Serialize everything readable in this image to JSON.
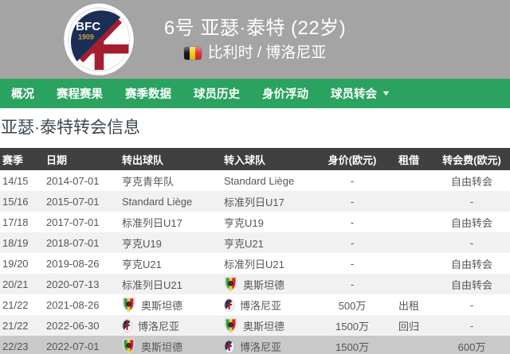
{
  "header": {
    "club_crest_icon": "bologna-crest-icon",
    "player_line": "6号 亚瑟·泰特 (22岁)",
    "nation_flag_icon": "belgium-flag-icon",
    "nation_line": "比利时 / 博洛尼亚"
  },
  "nav": {
    "items": [
      {
        "label": "概况"
      },
      {
        "label": "赛程赛果"
      },
      {
        "label": "赛季数据"
      },
      {
        "label": "球员历史"
      },
      {
        "label": "身价浮动"
      },
      {
        "label": "球员转会",
        "has_dropdown": true
      }
    ]
  },
  "icons": {
    "dropdown_caret": "▼"
  },
  "main": {
    "title": "亚瑟·泰特转会信息",
    "table": {
      "headers": [
        "赛季",
        "日期",
        "转出球队",
        "转入球队",
        "身价(欧元)",
        "租借",
        "转会费(欧元)"
      ],
      "rows": [
        {
          "season": "14/15",
          "date": "2014-07-01",
          "from": {
            "name": "亨克青年队",
            "logo": null
          },
          "to": {
            "name": "Standard Liège",
            "logo": null
          },
          "value": "-",
          "loan": "",
          "fee": "自由转会",
          "highlight": false
        },
        {
          "season": "15/16",
          "date": "2015-07-01",
          "from": {
            "name": "Standard Liège",
            "logo": null
          },
          "to": {
            "name": "标准列日U17",
            "logo": null
          },
          "value": "-",
          "loan": "",
          "fee": "-",
          "highlight": false
        },
        {
          "season": "17/18",
          "date": "2017-07-01",
          "from": {
            "name": "标准列日U17",
            "logo": null
          },
          "to": {
            "name": "亨克U19",
            "logo": null
          },
          "value": "-",
          "loan": "",
          "fee": "自由转会",
          "highlight": false
        },
        {
          "season": "18/19",
          "date": "2018-07-01",
          "from": {
            "name": "亨克U19",
            "logo": null
          },
          "to": {
            "name": "亨克U21",
            "logo": null
          },
          "value": "-",
          "loan": "",
          "fee": "-",
          "highlight": false
        },
        {
          "season": "19/20",
          "date": "2019-08-26",
          "from": {
            "name": "亨克U21",
            "logo": null
          },
          "to": {
            "name": "标准列日U21",
            "logo": null
          },
          "value": "-",
          "loan": "",
          "fee": "自由转会",
          "highlight": false
        },
        {
          "season": "20/21",
          "date": "2020-07-13",
          "from": {
            "name": "标准列日U21",
            "logo": null
          },
          "to": {
            "name": "奥斯坦德",
            "logo": "oostende-crest-icon"
          },
          "value": "-",
          "loan": "",
          "fee": "自由转会",
          "highlight": false
        },
        {
          "season": "21/22",
          "date": "2021-08-26",
          "from": {
            "name": "奥斯坦德",
            "logo": "oostende-crest-icon"
          },
          "to": {
            "name": "博洛尼亚",
            "logo": "bologna-crest-icon"
          },
          "value": "500万",
          "loan": "出租",
          "fee": "-",
          "highlight": false
        },
        {
          "season": "21/22",
          "date": "2022-06-30",
          "from": {
            "name": "博洛尼亚",
            "logo": "bologna-crest-icon"
          },
          "to": {
            "name": "奥斯坦德",
            "logo": "oostende-crest-icon"
          },
          "value": "1500万",
          "loan": "回归",
          "fee": "-",
          "highlight": false
        },
        {
          "season": "22/23",
          "date": "2022-07-01",
          "from": {
            "name": "奥斯坦德",
            "logo": "oostende-crest-icon"
          },
          "to": {
            "name": "博洛尼亚",
            "logo": "bologna-crest-icon"
          },
          "value": "1500万",
          "loan": "",
          "fee": "600万",
          "highlight": true
        }
      ]
    }
  },
  "colors": {
    "header_gray": "#a4a4a4",
    "nav_green": "#29a35f",
    "table_header_bg": "#404040",
    "stripe_row": "#f1f1f1",
    "highlight_row": "#c9c9c9",
    "cell_text": "#565656"
  }
}
